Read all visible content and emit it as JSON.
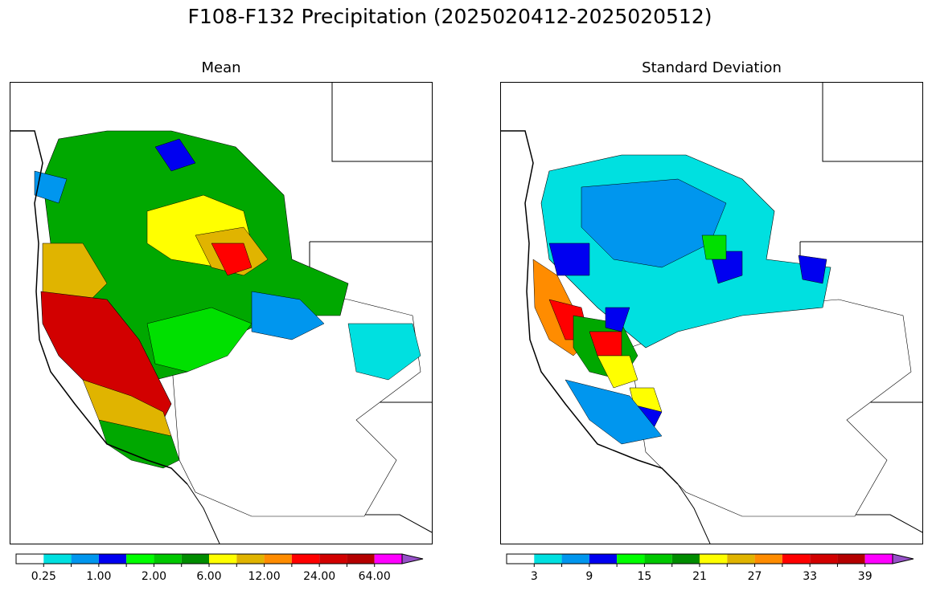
{
  "title": "F108-F132 Precipitation (2025020412-2025020512)",
  "panels": [
    {
      "id": "mean",
      "title": "Mean",
      "colorbar": {
        "colors": [
          "#ffffff",
          "#00e0e0",
          "#0096ee",
          "#0000f0",
          "#00ff00",
          "#00c800",
          "#008c00",
          "#ffff00",
          "#e0b400",
          "#ff8c00",
          "#ff0000",
          "#d20000",
          "#b40000",
          "#ff00ff",
          "#9650c8"
        ],
        "extend_color": "#9650c8",
        "tick_labels": [
          "0.25",
          "1.00",
          "2.00",
          "6.00",
          "12.00",
          "24.00",
          "64.00"
        ]
      }
    },
    {
      "id": "std",
      "title": "Standard Deviation",
      "colorbar": {
        "colors": [
          "#ffffff",
          "#00e0e0",
          "#0096ee",
          "#0000f0",
          "#00ff00",
          "#00c800",
          "#008c00",
          "#ffff00",
          "#e0b400",
          "#ff8c00",
          "#ff0000",
          "#d20000",
          "#b40000",
          "#ff00ff",
          "#9650c8"
        ],
        "extend_color": "#9650c8",
        "tick_labels": [
          "3",
          "9",
          "15",
          "21",
          "27",
          "33",
          "39"
        ]
      }
    }
  ]
}
